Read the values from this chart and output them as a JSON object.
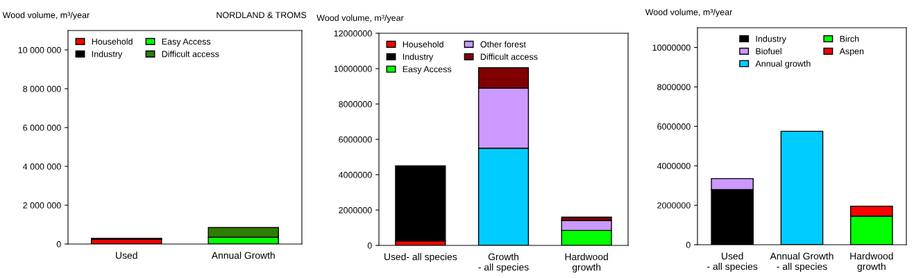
{
  "chart_data": [
    {
      "type": "bar",
      "stacked": true,
      "title": "NORDLAND & TROMS",
      "ylabel": "Wood volume, m³/year",
      "categories": [
        "Used",
        "Annual Growth"
      ],
      "ylim": [
        0,
        11000000
      ],
      "yticks": [
        {
          "value": 0,
          "label": "0"
        },
        {
          "value": 2000000,
          "label": "2 000 000"
        },
        {
          "value": 4000000,
          "label": "4 000 000"
        },
        {
          "value": 6000000,
          "label": "6 000 000"
        },
        {
          "value": 8000000,
          "label": "8 000 000"
        },
        {
          "value": 10000000,
          "label": "10 000 000"
        }
      ],
      "legend": "top left",
      "grid": false,
      "series": [
        {
          "name": "Household",
          "color": "#ff0000",
          "values": [
            250000,
            null
          ]
        },
        {
          "name": "Industry",
          "color": "#000000",
          "values": [
            50000,
            null
          ]
        },
        {
          "name": "Easy Access",
          "color": "#00ff00",
          "values": [
            null,
            350000
          ]
        },
        {
          "name": "Difficult access",
          "color": "#2e7d00",
          "values": [
            null,
            500000
          ]
        }
      ]
    },
    {
      "type": "bar",
      "stacked": true,
      "ylabel": "Wood volume, m³/year",
      "categories": [
        "Used- all species",
        "Growth\n- all species",
        "Hardwood\ngrowth"
      ],
      "ylim": [
        0,
        12000000
      ],
      "yticks": [
        0,
        2000000,
        4000000,
        6000000,
        8000000,
        10000000,
        12000000
      ],
      "legend": "top left",
      "grid": false,
      "series": [
        {
          "name": "Household",
          "color": "#ff0000",
          "values": [
            250000,
            null,
            null
          ]
        },
        {
          "name": "Industry",
          "color": "#000000",
          "values": [
            4250000,
            null,
            null
          ]
        },
        {
          "color": "#00ccff",
          "values": [
            null,
            5500000,
            null
          ]
        },
        {
          "name": "Easy Access",
          "color": "#00ff00",
          "values": [
            null,
            null,
            850000
          ]
        },
        {
          "name": "Other forest",
          "color": "#cc99ff",
          "values": [
            null,
            3400000,
            550000
          ]
        },
        {
          "name": "Difficult access",
          "color": "#800000",
          "values": [
            null,
            1150000,
            200000
          ]
        }
      ]
    },
    {
      "type": "bar",
      "stacked": true,
      "ylabel": "Wood volume, m³/year",
      "categories": [
        "Used\n- all species",
        "Annual Growth\n- all species",
        "Hardwood\ngrowth"
      ],
      "ylim": [
        0,
        11000000
      ],
      "yticks": [
        0,
        2000000,
        4000000,
        6000000,
        8000000,
        10000000
      ],
      "legend": "top",
      "grid": false,
      "series": [
        {
          "name": "Industry",
          "color": "#000000",
          "values": [
            2800000,
            null,
            null
          ]
        },
        {
          "name": "Biofuel",
          "color": "#cc99ff",
          "values": [
            550000,
            null,
            null
          ]
        },
        {
          "name": "Annual growth",
          "color": "#00ccff",
          "values": [
            null,
            5750000,
            null
          ]
        },
        {
          "name": "Birch",
          "color": "#00ff00",
          "values": [
            null,
            null,
            1450000
          ]
        },
        {
          "name": "Aspen",
          "color": "#ff0000",
          "values": [
            null,
            null,
            500000
          ]
        }
      ]
    }
  ]
}
